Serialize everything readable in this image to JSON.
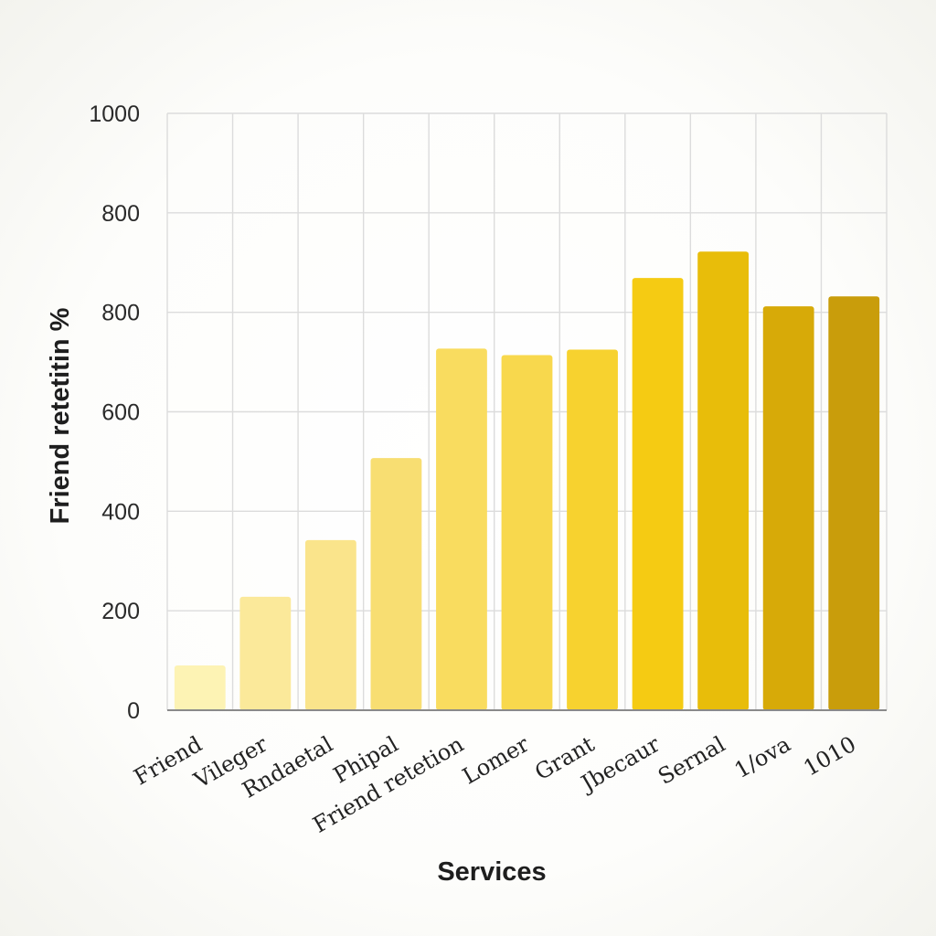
{
  "chart_data": {
    "type": "bar",
    "title": "",
    "xlabel": "Services",
    "ylabel": "Friend retetitin %",
    "ytick_labels": [
      "0",
      "200",
      "400",
      "600",
      "800",
      "800",
      "1000"
    ],
    "ylim": [
      0,
      1200
    ],
    "grid": true,
    "categories": [
      "Friend",
      "Vileger",
      "Rndaetal",
      "Phipal",
      "Friend retetion",
      "Lomer",
      "Grant",
      "Jbecaur",
      "Sernal",
      "1/ova",
      "1010"
    ],
    "values": [
      90,
      228,
      342,
      507,
      727,
      714,
      725,
      869,
      922,
      812,
      832
    ],
    "colors": [
      "#fdf3b4",
      "#fbe99a",
      "#fae48b",
      "#f8de72",
      "#f9dc5f",
      "#f8d84d",
      "#f7d22f",
      "#f5cb13",
      "#e8bd0a",
      "#d7aa08",
      "#c99d0b"
    ]
  }
}
